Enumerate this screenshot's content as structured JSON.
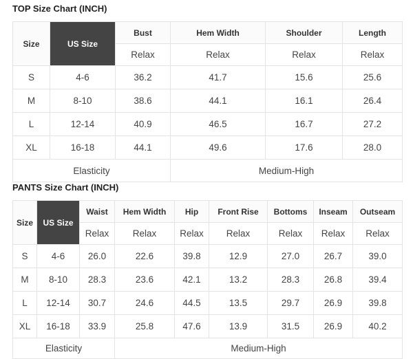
{
  "top": {
    "title": "TOP Size Chart (INCH)",
    "size_label": "Size",
    "us_label": "US Size",
    "columns": [
      "Bust",
      "Hem Width",
      "Shoulder",
      "Length"
    ],
    "sub": "Relax",
    "rows": [
      [
        "S",
        "4-6",
        "36.2",
        "41.7",
        "15.6",
        "25.6"
      ],
      [
        "M",
        "8-10",
        "38.6",
        "44.1",
        "16.1",
        "26.4"
      ],
      [
        "L",
        "12-14",
        "40.9",
        "46.5",
        "16.7",
        "27.2"
      ],
      [
        "XL",
        "16-18",
        "44.1",
        "49.6",
        "17.6",
        "28.0"
      ]
    ],
    "elasticity_label": "Elasticity",
    "elasticity_value": "Medium-High"
  },
  "pants": {
    "title": "PANTS Size Chart (INCH)",
    "size_label": "Size",
    "us_label": "US Size",
    "columns": [
      "Waist",
      "Hem Width",
      "Hip",
      "Front Rise",
      "Bottoms",
      "Inseam",
      "Outseam"
    ],
    "sub": "Relax",
    "rows": [
      [
        "S",
        "4-6",
        "26.0",
        "22.6",
        "39.8",
        "12.9",
        "27.0",
        "26.7",
        "39.0"
      ],
      [
        "M",
        "8-10",
        "28.3",
        "23.6",
        "42.1",
        "13.2",
        "28.3",
        "26.8",
        "39.4"
      ],
      [
        "L",
        "12-14",
        "30.7",
        "24.6",
        "44.5",
        "13.5",
        "29.7",
        "26.9",
        "39.8"
      ],
      [
        "XL",
        "16-18",
        "33.9",
        "25.8",
        "47.6",
        "13.9",
        "31.5",
        "26.9",
        "40.2"
      ]
    ],
    "elasticity_label": "Elasticity",
    "elasticity_value": "Medium-High"
  },
  "colors": {
    "us_header_bg": "#444444",
    "border": "#e3e3e3"
  }
}
